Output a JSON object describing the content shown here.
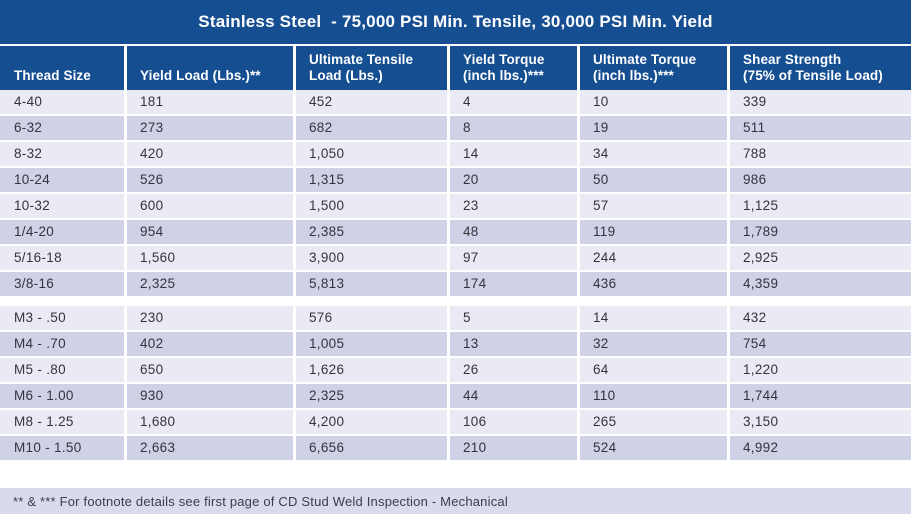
{
  "title": "Stainless Steel  - 75,000 PSI Min. Tensile, 30,000 PSI Min. Yield",
  "colors": {
    "header_blue": "#164e92",
    "row_light": "#eaeaf4",
    "row_dark": "#cfd2e6",
    "footer_band": "#d9daeb",
    "title_text": "#ffffff",
    "body_text": "#34343f"
  },
  "table": {
    "columns": [
      {
        "label": "Thread Size"
      },
      {
        "label": "Yield Load (Lbs.)**"
      },
      {
        "label": "Ultimate Tensile\nLoad (Lbs.)"
      },
      {
        "label": "Yield Torque\n(inch lbs.)***"
      },
      {
        "label": "Ultimate Torque\n(inch lbs.)***"
      },
      {
        "label": "Shear Strength\n(75% of Tensile Load)"
      }
    ],
    "sections": [
      {
        "name": "unc-unf-threads",
        "rows": [
          [
            "4-40",
            "181",
            "452",
            "4",
            "10",
            "339"
          ],
          [
            "6-32",
            "273",
            "682",
            "8",
            "19",
            "511"
          ],
          [
            "8-32",
            "420",
            "1,050",
            "14",
            "34",
            "788"
          ],
          [
            "10-24",
            "526",
            "1,315",
            "20",
            "50",
            "986"
          ],
          [
            "10-32",
            "600",
            "1,500",
            "23",
            "57",
            "1,125"
          ],
          [
            "1/4-20",
            "954",
            "2,385",
            "48",
            "119",
            "1,789"
          ],
          [
            "5/16-18",
            "1,560",
            "3,900",
            "97",
            "244",
            "2,925"
          ],
          [
            "3/8-16",
            "2,325",
            "5,813",
            "174",
            "436",
            "4,359"
          ]
        ]
      },
      {
        "name": "metric-threads",
        "rows": [
          [
            "M3 - .50",
            "230",
            "576",
            "5",
            "14",
            "432"
          ],
          [
            "M4 - .70",
            "402",
            "1,005",
            "13",
            "32",
            "754"
          ],
          [
            "M5 - .80",
            "650",
            "1,626",
            "26",
            "64",
            "1,220"
          ],
          [
            "M6 - 1.00",
            "930",
            "2,325",
            "44",
            "110",
            "1,744"
          ],
          [
            "M8 - 1.25",
            "1,680",
            "4,200",
            "106",
            "265",
            "3,150"
          ],
          [
            "M10 - 1.50",
            "2,663",
            "6,656",
            "210",
            "524",
            "4,992"
          ]
        ]
      }
    ]
  },
  "footnote": "** & *** For footnote details see first page of CD Stud Weld Inspection - Mechanical"
}
